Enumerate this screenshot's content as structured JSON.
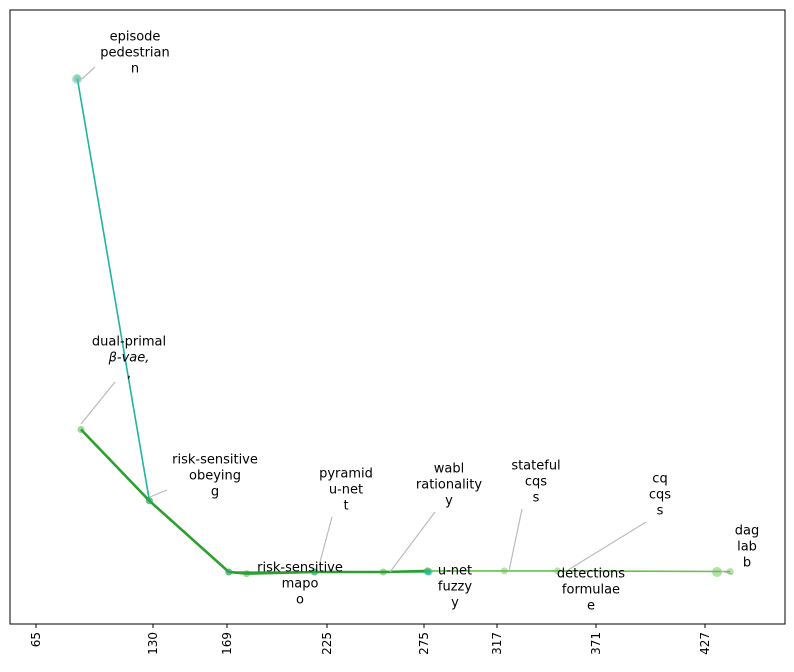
{
  "chart_data": {
    "type": "line",
    "title": "",
    "xlabel": "",
    "ylabel": "",
    "x_ticks": [
      "65",
      "130",
      "169",
      "225",
      "275",
      "317",
      "371",
      "427"
    ],
    "xlim": [
      48,
      462
    ],
    "ylim": [
      -0.05,
      1.05
    ],
    "y_ticks_visible": false,
    "grid": false,
    "colors": {
      "teal": "#1fb5a0",
      "green": "#2ca02c",
      "lightgreen": "#66c24f",
      "leader": "#bbbbbb"
    },
    "series": [
      {
        "color": "#1fb5a0",
        "points": [
          {
            "x": 88,
            "y": 0.9
          },
          {
            "x": 128,
            "y": 0.13
          },
          {
            "x": 170,
            "y": 0.0
          },
          {
            "x": 218,
            "y": 0.0
          },
          {
            "x": 277,
            "y": 0.0
          }
        ]
      },
      {
        "color": "#2ca02c",
        "points": [
          {
            "x": 90,
            "y": 0.26
          },
          {
            "x": 128,
            "y": 0.13
          },
          {
            "x": 170,
            "y": 0.0
          },
          {
            "x": 180,
            "y": -0.003
          },
          {
            "x": 218,
            "y": 0.0
          },
          {
            "x": 254,
            "y": 0.0
          },
          {
            "x": 277,
            "y": 0.002
          }
        ]
      },
      {
        "color": "#66c24f",
        "points": [
          {
            "x": 277,
            "y": 0.002
          },
          {
            "x": 321,
            "y": 0.002
          },
          {
            "x": 350,
            "y": 0.002
          },
          {
            "x": 440,
            "y": 0.001
          }
        ]
      }
    ],
    "annotations": [
      {
        "lines": [
          "episode",
          "pedestrian",
          "n"
        ],
        "x": 88,
        "y": 0.9,
        "align": "middle"
      },
      {
        "lines": [
          "dual-primal",
          "β-vae,",
          ","
        ],
        "x": 90,
        "y": 0.26,
        "align": "middle"
      },
      {
        "lines": [
          "risk-sensitive",
          "obeying",
          "g"
        ],
        "x": 128,
        "y": 0.13,
        "align": "middle"
      },
      {
        "lines": [
          "pyramid",
          "u-net",
          "t"
        ],
        "x": 218,
        "y": 0.0,
        "align": "middle"
      },
      {
        "lines": [
          "risk-sensitive",
          "mapo",
          "o"
        ],
        "x": 170,
        "y": 0.0,
        "align": "middle"
      },
      {
        "lines": [
          "wabl",
          "rationality",
          "y"
        ],
        "x": 254,
        "y": 0.0,
        "align": "middle"
      },
      {
        "lines": [
          "u-net",
          "fuzzy",
          "y"
        ],
        "x": 277,
        "y": 0.0,
        "align": "middle"
      },
      {
        "lines": [
          "stateful",
          "cqs",
          "s"
        ],
        "x": 321,
        "y": 0.0,
        "align": "middle"
      },
      {
        "lines": [
          "cq",
          "cqs",
          "s"
        ],
        "x": 350,
        "y": 0.0,
        "align": "middle"
      },
      {
        "lines": [
          "detections",
          "formulae",
          "e"
        ],
        "x": 350,
        "y": 0.0,
        "align": "middle"
      },
      {
        "lines": [
          "dag",
          "lab",
          "b"
        ],
        "x": 440,
        "y": 0.0,
        "align": "middle"
      }
    ]
  }
}
